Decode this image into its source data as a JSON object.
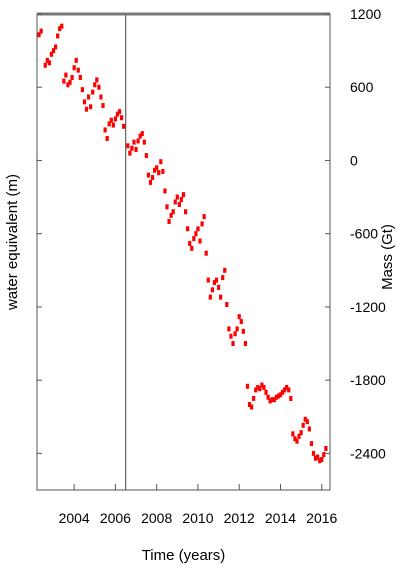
{
  "chart_data": {
    "type": "scatter",
    "title": "",
    "xlabel": "Time (years)",
    "ylabel_left": "water equivalent (m)",
    "ylabel_right": "Mass (Gt)",
    "xlim": [
      2002.2,
      2016.4
    ],
    "ylim": [
      -2700,
      1200
    ],
    "x_ticks": [
      2004,
      2006,
      2008,
      2010,
      2012,
      2014,
      2016
    ],
    "y_ticks": [
      1200,
      600,
      0,
      -600,
      -1200,
      -1800,
      -2400
    ],
    "reference_line_x": 2006.5,
    "series": [
      {
        "color": "#ff0000",
        "points": [
          [
            2002.3,
            1030
          ],
          [
            2002.4,
            1060
          ],
          [
            2002.6,
            780
          ],
          [
            2002.7,
            820
          ],
          [
            2002.8,
            800
          ],
          [
            2002.9,
            870
          ],
          [
            2003.0,
            900
          ],
          [
            2003.1,
            930
          ],
          [
            2003.2,
            1020
          ],
          [
            2003.3,
            1080
          ],
          [
            2003.4,
            1100
          ],
          [
            2003.5,
            650
          ],
          [
            2003.6,
            700
          ],
          [
            2003.7,
            620
          ],
          [
            2003.8,
            640
          ],
          [
            2003.9,
            680
          ],
          [
            2004.0,
            760
          ],
          [
            2004.1,
            820
          ],
          [
            2004.2,
            740
          ],
          [
            2004.3,
            680
          ],
          [
            2004.4,
            580
          ],
          [
            2004.5,
            480
          ],
          [
            2004.6,
            420
          ],
          [
            2004.7,
            520
          ],
          [
            2004.8,
            440
          ],
          [
            2004.9,
            560
          ],
          [
            2005.0,
            620
          ],
          [
            2005.1,
            660
          ],
          [
            2005.2,
            600
          ],
          [
            2005.3,
            520
          ],
          [
            2005.4,
            450
          ],
          [
            2005.5,
            250
          ],
          [
            2005.6,
            180
          ],
          [
            2005.7,
            300
          ],
          [
            2005.8,
            330
          ],
          [
            2005.9,
            290
          ],
          [
            2006.0,
            340
          ],
          [
            2006.1,
            380
          ],
          [
            2006.2,
            400
          ],
          [
            2006.3,
            350
          ],
          [
            2006.4,
            280
          ],
          [
            2006.6,
            120
          ],
          [
            2006.7,
            60
          ],
          [
            2006.8,
            100
          ],
          [
            2006.9,
            150
          ],
          [
            2007.0,
            90
          ],
          [
            2007.1,
            160
          ],
          [
            2007.2,
            200
          ],
          [
            2007.3,
            220
          ],
          [
            2007.4,
            150
          ],
          [
            2007.5,
            40
          ],
          [
            2007.6,
            -120
          ],
          [
            2007.7,
            -180
          ],
          [
            2007.8,
            -140
          ],
          [
            2007.9,
            -80
          ],
          [
            2008.0,
            -60
          ],
          [
            2008.1,
            -100
          ],
          [
            2008.2,
            -10
          ],
          [
            2008.3,
            -90
          ],
          [
            2008.4,
            -250
          ],
          [
            2008.5,
            -380
          ],
          [
            2008.6,
            -500
          ],
          [
            2008.7,
            -450
          ],
          [
            2008.8,
            -420
          ],
          [
            2008.9,
            -340
          ],
          [
            2009.0,
            -300
          ],
          [
            2009.1,
            -360
          ],
          [
            2009.2,
            -320
          ],
          [
            2009.3,
            -280
          ],
          [
            2009.4,
            -420
          ],
          [
            2009.5,
            -560
          ],
          [
            2009.6,
            -680
          ],
          [
            2009.7,
            -720
          ],
          [
            2009.8,
            -640
          ],
          [
            2009.9,
            -600
          ],
          [
            2010.0,
            -560
          ],
          [
            2010.1,
            -660
          ],
          [
            2010.2,
            -520
          ],
          [
            2010.3,
            -460
          ],
          [
            2010.4,
            -760
          ],
          [
            2010.5,
            -980
          ],
          [
            2010.6,
            -1120
          ],
          [
            2010.7,
            -1060
          ],
          [
            2010.8,
            -1000
          ],
          [
            2010.9,
            -980
          ],
          [
            2011.0,
            -1040
          ],
          [
            2011.1,
            -1120
          ],
          [
            2011.2,
            -960
          ],
          [
            2011.3,
            -900
          ],
          [
            2011.4,
            -1180
          ],
          [
            2011.5,
            -1380
          ],
          [
            2011.6,
            -1440
          ],
          [
            2011.7,
            -1500
          ],
          [
            2011.8,
            -1420
          ],
          [
            2011.9,
            -1380
          ],
          [
            2012.0,
            -1280
          ],
          [
            2012.1,
            -1320
          ],
          [
            2012.2,
            -1400
          ],
          [
            2012.3,
            -1500
          ],
          [
            2012.4,
            -1850
          ],
          [
            2012.5,
            -2000
          ],
          [
            2012.6,
            -2020
          ],
          [
            2012.7,
            -1950
          ],
          [
            2012.8,
            -1880
          ],
          [
            2012.9,
            -1860
          ],
          [
            2013.0,
            -1870
          ],
          [
            2013.1,
            -1840
          ],
          [
            2013.2,
            -1860
          ],
          [
            2013.3,
            -1900
          ],
          [
            2013.4,
            -1940
          ],
          [
            2013.5,
            -1970
          ],
          [
            2013.6,
            -1960
          ],
          [
            2013.7,
            -1960
          ],
          [
            2013.8,
            -1940
          ],
          [
            2013.9,
            -1930
          ],
          [
            2014.0,
            -1920
          ],
          [
            2014.1,
            -1900
          ],
          [
            2014.2,
            -1880
          ],
          [
            2014.3,
            -1860
          ],
          [
            2014.4,
            -1880
          ],
          [
            2014.5,
            -1950
          ],
          [
            2014.6,
            -2240
          ],
          [
            2014.7,
            -2280
          ],
          [
            2014.8,
            -2300
          ],
          [
            2014.9,
            -2260
          ],
          [
            2015.0,
            -2230
          ],
          [
            2015.1,
            -2170
          ],
          [
            2015.2,
            -2120
          ],
          [
            2015.3,
            -2140
          ],
          [
            2015.4,
            -2200
          ],
          [
            2015.5,
            -2320
          ],
          [
            2015.6,
            -2400
          ],
          [
            2015.7,
            -2440
          ],
          [
            2015.8,
            -2430
          ],
          [
            2015.9,
            -2460
          ],
          [
            2016.0,
            -2450
          ],
          [
            2016.1,
            -2410
          ],
          [
            2016.2,
            -2360
          ]
        ]
      }
    ]
  }
}
